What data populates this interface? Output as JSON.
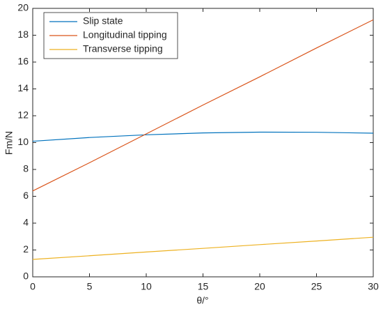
{
  "chart_data": {
    "type": "line",
    "x": [
      0,
      5,
      10,
      15,
      20,
      25,
      30
    ],
    "series": [
      {
        "name": "Slip state",
        "color": "#0072bd",
        "values": [
          10.1,
          10.38,
          10.58,
          10.72,
          10.78,
          10.77,
          10.7
        ]
      },
      {
        "name": "Longitudinal tipping",
        "color": "#d95319",
        "values": [
          6.4,
          8.5,
          10.65,
          12.8,
          14.9,
          17.05,
          19.15
        ]
      },
      {
        "name": "Transverse tipping",
        "color": "#edb120",
        "values": [
          1.3,
          1.57,
          1.85,
          2.12,
          2.4,
          2.67,
          2.95
        ]
      }
    ],
    "xlabel": "θ/°",
    "ylabel": "Fm/N",
    "xlim": [
      0,
      30
    ],
    "xticks": [
      0,
      5,
      10,
      15,
      20,
      25,
      30
    ],
    "ylim": [
      0,
      20
    ],
    "yticks": [
      0,
      2,
      4,
      6,
      8,
      10,
      12,
      14,
      16,
      18,
      20
    ],
    "legend": "upper-left"
  }
}
